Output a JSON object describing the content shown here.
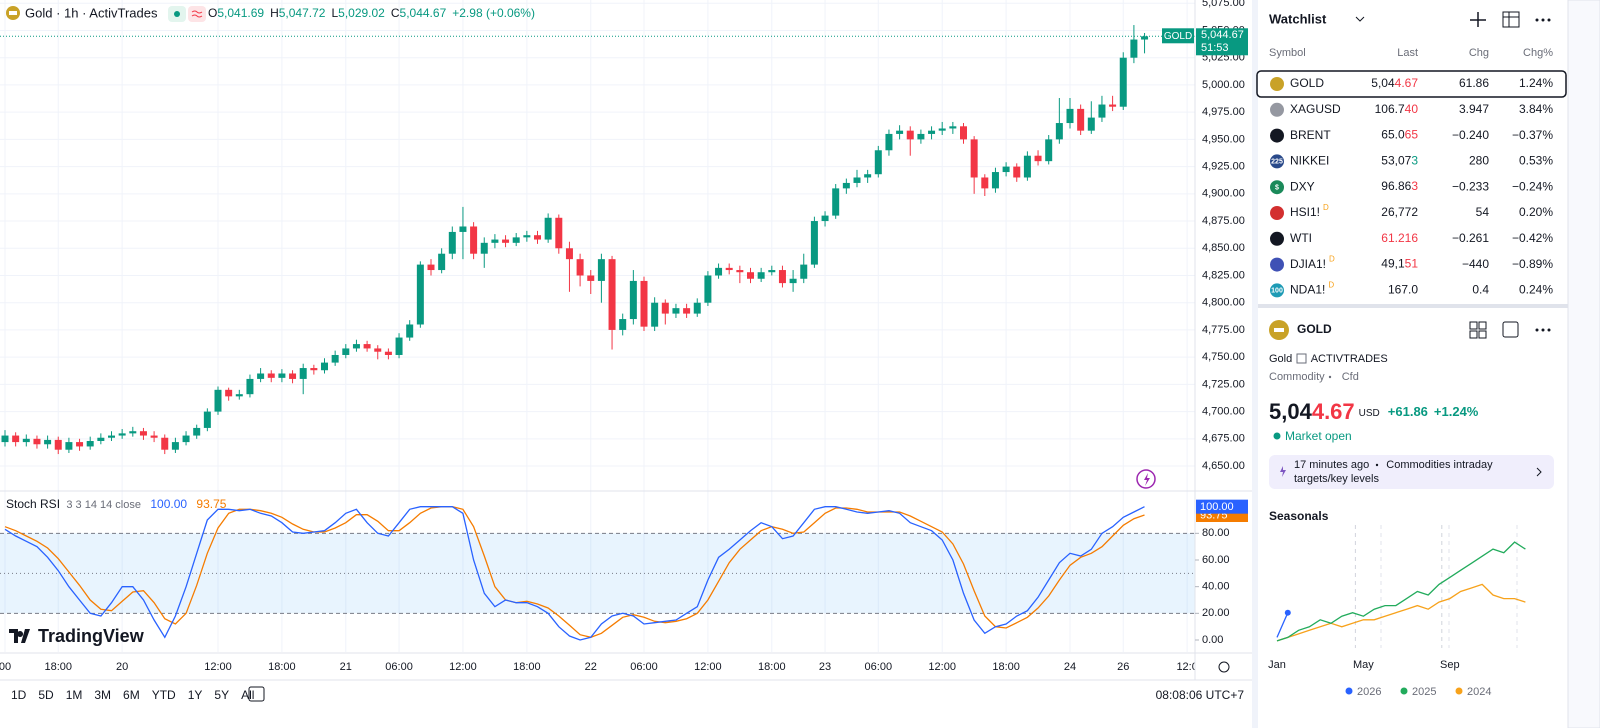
{
  "header": {
    "title": "Gold · 1h · ActivTrades",
    "ohlc": [
      {
        "label": "O",
        "value": "5,041.69"
      },
      {
        "label": "H",
        "value": "5,047.72"
      },
      {
        "label": "L",
        "value": "5,029.02"
      },
      {
        "label": "C",
        "value": "5,044.67"
      }
    ],
    "change": "+2.98 (+0.06%)"
  },
  "chart_data": [
    {
      "type": "candlestick",
      "categories": [
        "00",
        null,
        null,
        null,
        null,
        "18:00",
        null,
        null,
        null,
        null,
        null,
        "20",
        null,
        null,
        null,
        null,
        null,
        null,
        null,
        null,
        "12:00",
        null,
        null,
        null,
        null,
        null,
        "18:00",
        null,
        null,
        null,
        null,
        null,
        "21",
        null,
        null,
        null,
        null,
        "06:00",
        null,
        null,
        null,
        null,
        null,
        "12:00",
        null,
        null,
        null,
        null,
        null,
        "18:00",
        null,
        null,
        null,
        null,
        null,
        "22",
        null,
        null,
        null,
        null,
        "06:00",
        null,
        null,
        null,
        null,
        null,
        "12:00",
        null,
        null,
        null,
        null,
        null,
        "18:00",
        null,
        null,
        null,
        null,
        "23",
        null,
        null,
        null,
        null,
        "06:00",
        null,
        null,
        null,
        null,
        null,
        "12:00",
        null,
        null,
        null,
        null,
        null,
        "18:00",
        null,
        null,
        null,
        null,
        null,
        "24",
        null,
        null,
        null,
        null,
        "26",
        null,
        null,
        null,
        null,
        null,
        "12:0"
      ],
      "open": [
        4672,
        4678,
        4672,
        4675,
        4670,
        4674,
        4665,
        4672,
        4668,
        4673,
        4676,
        4678,
        4680,
        4682,
        4678,
        4676,
        4665,
        4672,
        4678,
        4685,
        4700,
        4720,
        4714,
        4716,
        4730,
        4735,
        4731,
        4735,
        4730,
        4740,
        4738,
        4745,
        4752,
        4758,
        4762,
        4758,
        4755,
        4752,
        4768,
        4780,
        4835,
        4830,
        4845,
        4865,
        4870,
        4845,
        4855,
        4858,
        4855,
        4860,
        4862,
        4858,
        4878,
        4850,
        4840,
        4825,
        4820,
        4840,
        4775,
        4785,
        4820,
        4778,
        4800,
        4790,
        4795,
        4790,
        4800,
        4825,
        4832,
        4830,
        4828,
        4822,
        4828,
        4830,
        4818,
        4822,
        4835,
        4875,
        4880,
        4905,
        4910,
        4915,
        4918,
        4940,
        4955,
        4958,
        4950,
        4955,
        4958,
        4960,
        4962,
        4950,
        4915,
        4905,
        4920,
        4925,
        4915,
        4935,
        4930,
        4950,
        4965,
        4978,
        4958,
        4970,
        4982,
        4980,
        5025,
        5041.69,
        null,
        null,
        null,
        null
      ],
      "high": [
        4683,
        4681,
        4679,
        4678,
        4678,
        4677,
        4676,
        4675,
        4677,
        4680,
        4682,
        4684,
        4686,
        4685,
        4682,
        4679,
        4676,
        4682,
        4688,
        4703,
        4723,
        4722,
        4720,
        4734,
        4740,
        4738,
        4739,
        4738,
        4744,
        4743,
        4749,
        4756,
        4762,
        4766,
        4765,
        4761,
        4758,
        4772,
        4784,
        4838,
        4840,
        4850,
        4870,
        4888,
        4874,
        4860,
        4863,
        4862,
        4864,
        4866,
        4866,
        4882,
        4881,
        4856,
        4845,
        4830,
        4845,
        4843,
        4790,
        4830,
        4824,
        4805,
        4803,
        4799,
        4799,
        4804,
        4829,
        4836,
        4836,
        4834,
        4832,
        4832,
        4834,
        4834,
        4830,
        4845,
        4879,
        4884,
        4909,
        4914,
        4922,
        4922,
        4944,
        4959,
        4963,
        4962,
        4959,
        4962,
        4966,
        4966,
        4965,
        4953,
        4918,
        4924,
        4929,
        4928,
        4939,
        4940,
        4954,
        4988,
        4988,
        4982,
        4985,
        4990,
        4990,
        5030,
        5055,
        5047.72,
        null,
        null,
        null,
        null
      ],
      "low": [
        4668,
        4668,
        4668,
        4666,
        4666,
        4661,
        4662,
        4664,
        4665,
        4670,
        4673,
        4675,
        4677,
        4674,
        4672,
        4661,
        4662,
        4669,
        4675,
        4682,
        4697,
        4710,
        4711,
        4713,
        4727,
        4727,
        4727,
        4726,
        4716,
        4734,
        4735,
        4742,
        4749,
        4755,
        4755,
        4748,
        4748,
        4749,
        4765,
        4777,
        4825,
        4827,
        4840,
        4840,
        4840,
        4832,
        4850,
        4851,
        4852,
        4856,
        4854,
        4855,
        4845,
        4810,
        4815,
        4808,
        4800,
        4757,
        4770,
        4780,
        4774,
        4774,
        4780,
        4786,
        4786,
        4787,
        4797,
        4822,
        4826,
        4818,
        4818,
        4819,
        4825,
        4814,
        4810,
        4818,
        4832,
        4870,
        4877,
        4900,
        4906,
        4910,
        4915,
        4935,
        4950,
        4935,
        4946,
        4950,
        4954,
        4955,
        4946,
        4900,
        4898,
        4901,
        4916,
        4911,
        4912,
        4926,
        4927,
        4946,
        4960,
        4954,
        4955,
        4966,
        4976,
        4977,
        5020,
        5029.02,
        null,
        null,
        null,
        null
      ],
      "close": [
        4678,
        4672,
        4675,
        4670,
        4674,
        4665,
        4672,
        4668,
        4673,
        4676,
        4678,
        4680,
        4682,
        4678,
        4676,
        4665,
        4672,
        4678,
        4685,
        4700,
        4720,
        4714,
        4716,
        4730,
        4735,
        4731,
        4735,
        4730,
        4740,
        4738,
        4745,
        4752,
        4758,
        4762,
        4758,
        4755,
        4752,
        4768,
        4780,
        4835,
        4830,
        4845,
        4865,
        4870,
        4845,
        4855,
        4858,
        4855,
        4860,
        4862,
        4858,
        4878,
        4850,
        4840,
        4825,
        4820,
        4840,
        4775,
        4785,
        4820,
        4778,
        4800,
        4790,
        4795,
        4790,
        4800,
        4825,
        4832,
        4830,
        4828,
        4822,
        4828,
        4830,
        4818,
        4822,
        4835,
        4875,
        4880,
        4905,
        4910,
        4915,
        4918,
        4940,
        4955,
        4958,
        4950,
        4955,
        4958,
        4960,
        4962,
        4950,
        4915,
        4905,
        4920,
        4925,
        4915,
        4935,
        4930,
        4950,
        4965,
        4978,
        4958,
        4970,
        4982,
        4980,
        5025,
        5041.69,
        5044.67,
        null,
        null,
        null,
        null
      ],
      "up_color": "#089981",
      "down_color": "#f23645",
      "ylim": [
        4628,
        5078
      ],
      "yticks": [
        {
          "value": 4650,
          "label": "4,650.00"
        },
        {
          "value": 4675,
          "label": "4,675.00"
        },
        {
          "value": 4700,
          "label": "4,700.00"
        },
        {
          "value": 4725,
          "label": "4,725.00"
        },
        {
          "value": 4750,
          "label": "4,750.00"
        },
        {
          "value": 4775,
          "label": "4,775.00"
        },
        {
          "value": 4800,
          "label": "4,800.00"
        },
        {
          "value": 4825,
          "label": "4,825.00"
        },
        {
          "value": 4850,
          "label": "4,850.00"
        },
        {
          "value": 4875,
          "label": "4,875.00"
        },
        {
          "value": 4900,
          "label": "4,900.00"
        },
        {
          "value": 4925,
          "label": "4,925.00"
        },
        {
          "value": 4950,
          "label": "4,950.00"
        },
        {
          "value": 4975,
          "label": "4,975.00"
        },
        {
          "value": 5000,
          "label": "5,000.00"
        },
        {
          "value": 5025,
          "label": "5,025.00"
        },
        {
          "value": 5050,
          "label": "5,050.00"
        },
        {
          "value": 5075,
          "label": "5,075.00"
        }
      ],
      "grid": true,
      "last_price_badge": {
        "symbol": "GOLD",
        "price": "5,044.67",
        "countdown": "51:53"
      }
    },
    {
      "type": "line",
      "title": "Stoch RSI",
      "subtitle": "3 3 14 14 close",
      "series": [
        {
          "color": "#2962ff",
          "last_value_label": "100.00",
          "values": [
            83,
            78,
            74,
            70,
            62,
            52,
            40,
            30,
            20,
            18,
            28,
            40,
            40,
            30,
            15,
            2,
            18,
            40,
            65,
            90,
            98,
            98,
            97,
            98,
            95,
            93,
            88,
            81,
            80,
            81,
            82,
            88,
            95,
            98,
            88,
            80,
            78,
            88,
            98,
            100,
            100,
            100,
            100,
            95,
            60,
            35,
            25,
            30,
            28,
            28,
            25,
            20,
            10,
            3,
            0,
            2,
            12,
            18,
            20,
            18,
            12,
            13,
            14,
            15,
            20,
            25,
            45,
            62,
            68,
            75,
            82,
            88,
            85,
            76,
            78,
            88,
            98,
            100,
            100,
            98,
            96,
            95,
            96,
            97,
            95,
            88,
            85,
            82,
            75,
            60,
            35,
            15,
            5,
            10,
            12,
            18,
            22,
            32,
            45,
            58,
            65,
            63,
            68,
            80,
            85,
            92,
            96,
            100
          ]
        },
        {
          "color": "#f57c00",
          "last_value_label": "93.75",
          "values": [
            85,
            82,
            78,
            74,
            69,
            61,
            51,
            41,
            30,
            23,
            22,
            29,
            36,
            37,
            28,
            16,
            12,
            20,
            41,
            65,
            84,
            95,
            98,
            98,
            97,
            95,
            92,
            87,
            83,
            81,
            81,
            84,
            88,
            94,
            94,
            89,
            82,
            82,
            88,
            95,
            99,
            100,
            100,
            98,
            85,
            63,
            40,
            30,
            28,
            29,
            27,
            24,
            18,
            11,
            4,
            2,
            5,
            11,
            17,
            19,
            17,
            14,
            13,
            14,
            16,
            20,
            30,
            44,
            58,
            68,
            75,
            82,
            85,
            83,
            80,
            81,
            88,
            95,
            99,
            99,
            98,
            96,
            96,
            96,
            96,
            93,
            89,
            85,
            81,
            72,
            57,
            37,
            18,
            10,
            9,
            13,
            17,
            24,
            33,
            45,
            56,
            62,
            65,
            70,
            78,
            86,
            91,
            93.75
          ]
        }
      ],
      "ylim": [
        -9,
        111
      ],
      "yticks": [
        {
          "value": 0,
          "label": "0.00"
        },
        {
          "value": 20,
          "label": "20.00"
        },
        {
          "value": 40,
          "label": "40.00"
        },
        {
          "value": 60,
          "label": "60.00"
        },
        {
          "value": 80,
          "label": "80.00"
        }
      ],
      "levels": [
        80,
        50,
        20
      ],
      "band_color": "#2196f3"
    },
    {
      "type": "line",
      "title": "Seasonals",
      "categories": [
        "Jan",
        null,
        null,
        null,
        null,
        null,
        null,
        null,
        "May",
        null,
        null,
        null,
        null,
        null,
        null,
        null,
        "Sep",
        null,
        null,
        null,
        null,
        null,
        null,
        null
      ],
      "series": [
        {
          "name": "2026",
          "color": "#2962ff",
          "values": [
            1,
            8,
            null,
            null,
            null,
            null,
            null,
            null,
            null,
            null,
            null,
            null,
            null,
            null,
            null,
            null,
            null,
            null,
            null,
            null,
            null,
            null,
            null,
            null
          ]
        },
        {
          "name": "2025",
          "color": "#22ab5c",
          "values": [
            0,
            1,
            3,
            4,
            6,
            5,
            7,
            8,
            7,
            9,
            10,
            10,
            12,
            14,
            13,
            16,
            18,
            20,
            22,
            24,
            26,
            25,
            28,
            26
          ]
        },
        {
          "name": "2024",
          "color": "#f7a21b",
          "values": [
            0,
            1,
            2,
            3,
            4,
            5,
            4,
            5,
            6,
            6,
            7,
            8,
            9,
            10,
            9,
            11,
            12,
            14,
            15,
            16,
            13,
            12,
            12,
            11
          ]
        }
      ],
      "ylim": [
        -2,
        30
      ]
    }
  ],
  "watchlist": {
    "title": "Watchlist",
    "columns": [
      "Symbol",
      "Last",
      "Chg",
      "Chg%"
    ],
    "rows": [
      {
        "symbol": "GOLD",
        "icon_color": "#c9a227",
        "last": [
          {
            "text": "5,04"
          },
          {
            "text": "4.67",
            "color": "#f23645"
          }
        ],
        "chg": "61.86",
        "chg_pct": "1.24%"
      },
      {
        "symbol": "XAGUSD",
        "icon_color": "#9598a1",
        "last": [
          {
            "text": "106.7"
          },
          {
            "text": "40",
            "color": "#f23645"
          }
        ],
        "chg": "3.947",
        "chg_pct": "3.84%"
      },
      {
        "symbol": "BRENT",
        "icon_color": "#131722",
        "last": [
          {
            "text": "65.0"
          },
          {
            "text": "65",
            "color": "#f23645"
          }
        ],
        "chg": "−0.240",
        "chg_pct": "−0.37%"
      },
      {
        "symbol": "NIKKEI",
        "icon_color": "#2a4a8a",
        "icon_text": "225",
        "last": [
          {
            "text": "53,07"
          },
          {
            "text": "3",
            "color": "#089981"
          }
        ],
        "chg": "280",
        "chg_pct": "0.53%"
      },
      {
        "symbol": "DXY",
        "icon_color": "#1b8a5a",
        "icon_text": "$",
        "last": [
          {
            "text": "96.86"
          },
          {
            "text": "3",
            "color": "#f23645"
          }
        ],
        "chg": "−0.233",
        "chg_pct": "−0.24%"
      },
      {
        "symbol": "HSI1!",
        "icon_color": "#d32f2f",
        "badge": "D",
        "last": [
          {
            "text": "26,772"
          }
        ],
        "chg": "54",
        "chg_pct": "0.20%"
      },
      {
        "symbol": "WTI",
        "icon_color": "#131722",
        "last": [
          {
            "text": "61.216",
            "color": "#f23645"
          }
        ],
        "chg": "−0.261",
        "chg_pct": "−0.42%"
      },
      {
        "symbol": "DJIA1!",
        "icon_color": "#3f51b5",
        "badge": "D",
        "last": [
          {
            "text": "49,1"
          },
          {
            "text": "51",
            "color": "#f23645"
          }
        ],
        "chg": "−440",
        "chg_pct": "−0.89%"
      },
      {
        "symbol": "NDA1!",
        "icon_color": "#1e9bb5",
        "icon_text": "100",
        "badge": "D",
        "last": [
          {
            "text": "167.0"
          }
        ],
        "chg": "0.4",
        "chg_pct": "0.24%"
      }
    ]
  },
  "symbol_panel": {
    "symbol": "GOLD",
    "name": "Gold",
    "exchange": "ACTIVTRADES",
    "category": "Commodity",
    "kind": "Cfd",
    "price": [
      {
        "text": "5,04"
      },
      {
        "text": "4.67",
        "color": "#f23645"
      }
    ],
    "currency": "USD",
    "change": "+61.86",
    "change_pct": "+1.24%",
    "status": "Market open",
    "news": {
      "time": "17 minutes ago",
      "headline_lines": [
        "Commodities intraday",
        "targets/key levels"
      ]
    }
  },
  "toolbar": {
    "ranges": [
      "1D",
      "5D",
      "1M",
      "3M",
      "6M",
      "YTD",
      "1Y",
      "5Y",
      "All"
    ],
    "clock": "08:08:06 UTC+7"
  },
  "watermark": "TradingView"
}
